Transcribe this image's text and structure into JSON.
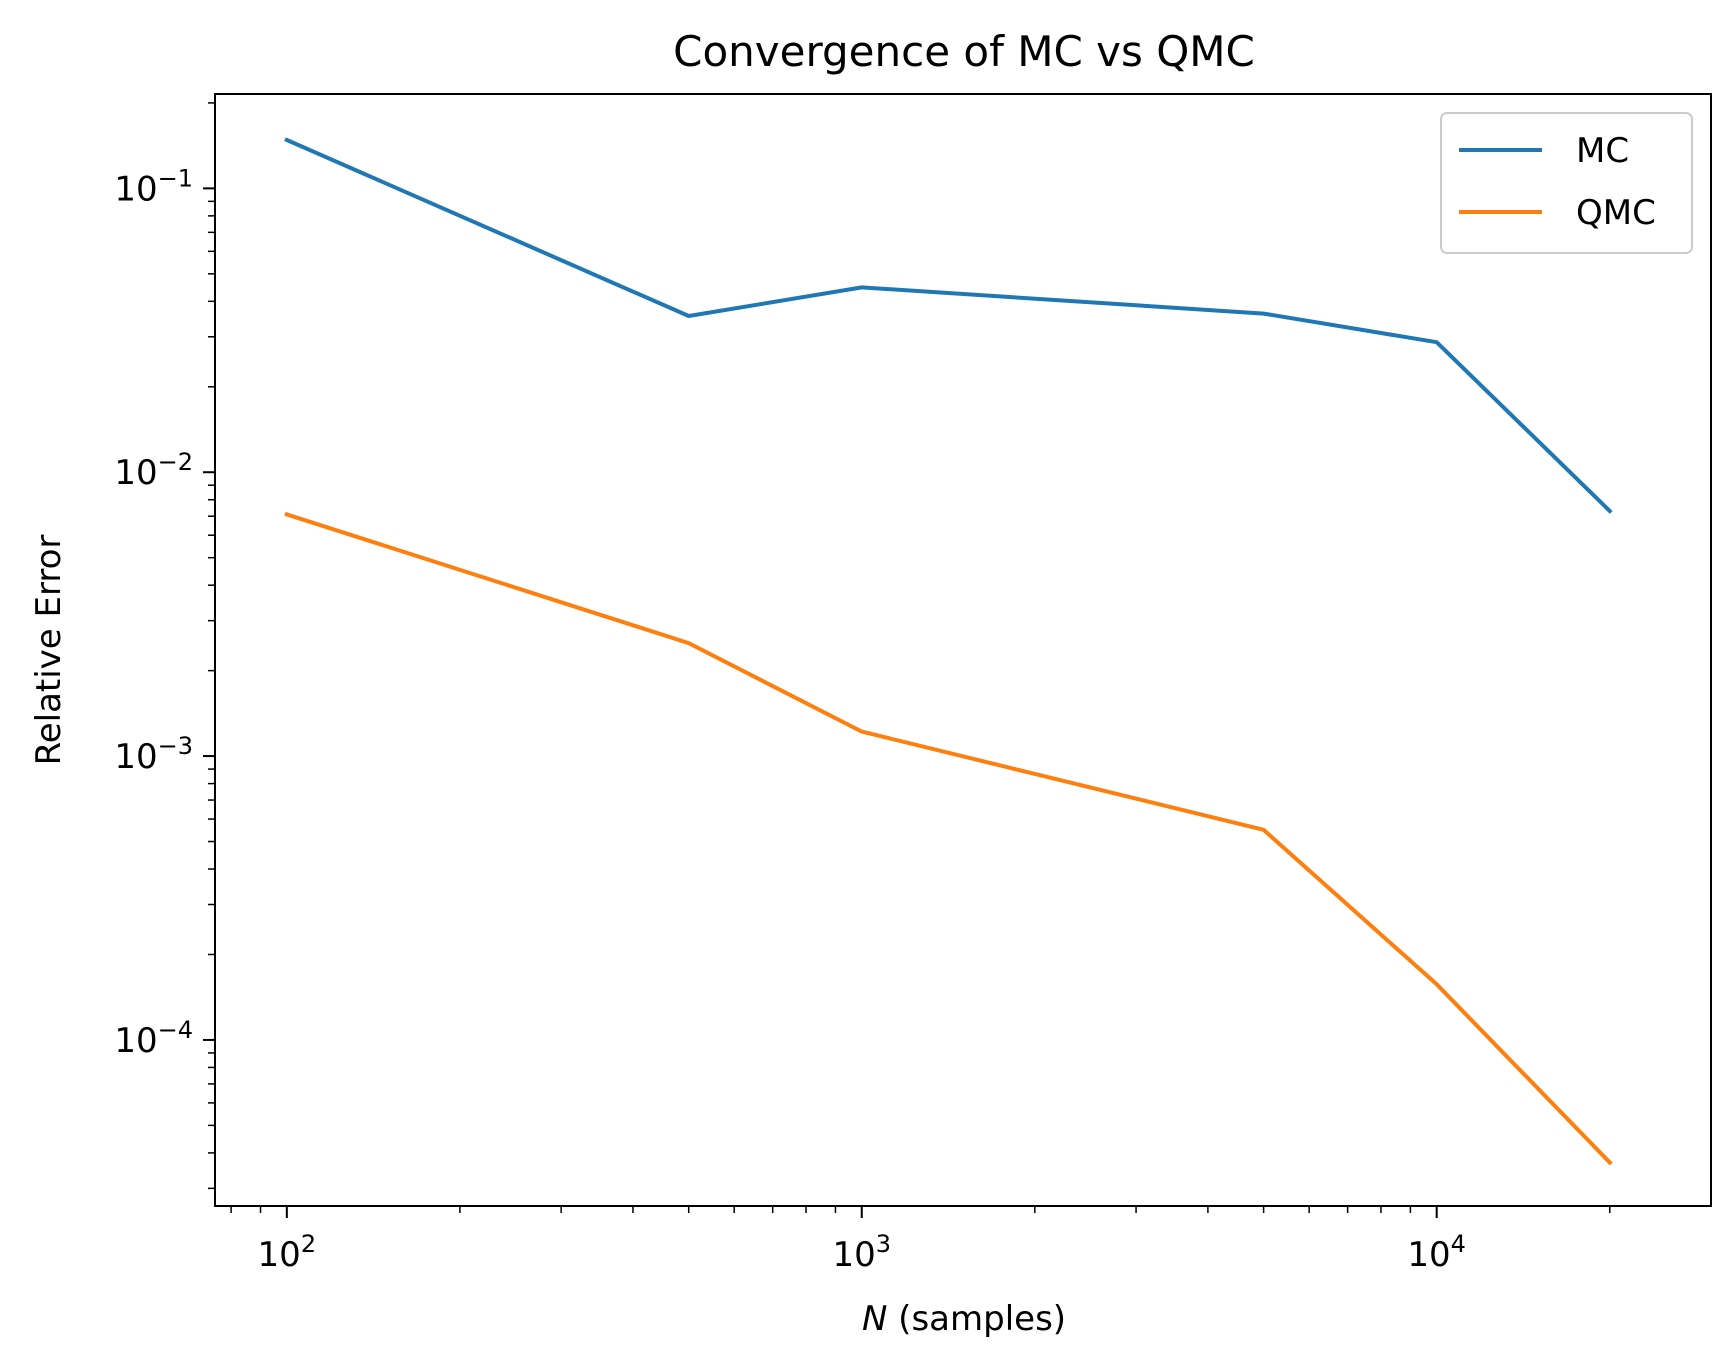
{
  "chart_data": {
    "type": "line",
    "title": "Convergence of MC vs QMC",
    "xlabel_var": "N",
    "xlabel_rest": " (samples)",
    "ylabel": "Relative Error",
    "xscale": "log",
    "yscale": "log",
    "xlim": [
      75,
      30000
    ],
    "ylim": [
      2.6e-05,
      0.215
    ],
    "grid": false,
    "legend_position": "top-right",
    "x": [
      100,
      500,
      1000,
      5000,
      10000,
      20000
    ],
    "series": [
      {
        "name": "MC",
        "color": "#1f77b4",
        "values": [
          0.148,
          0.0355,
          0.0448,
          0.0362,
          0.0287,
          0.0073
        ]
      },
      {
        "name": "QMC",
        "color": "#ff7f0e",
        "values": [
          0.0071,
          0.0025,
          0.00122,
          0.00055,
          0.000157,
          3.7e-05
        ]
      }
    ],
    "x_ticks": [
      {
        "value": 100,
        "base": "10",
        "exp": "2"
      },
      {
        "value": 1000,
        "base": "10",
        "exp": "3"
      },
      {
        "value": 10000,
        "base": "10",
        "exp": "4"
      }
    ],
    "y_ticks": [
      {
        "value": 0.1,
        "base": "10",
        "exp": "−1"
      },
      {
        "value": 0.01,
        "base": "10",
        "exp": "−2"
      },
      {
        "value": 0.001,
        "base": "10",
        "exp": "−3"
      },
      {
        "value": 0.0001,
        "base": "10",
        "exp": "−4"
      }
    ]
  }
}
